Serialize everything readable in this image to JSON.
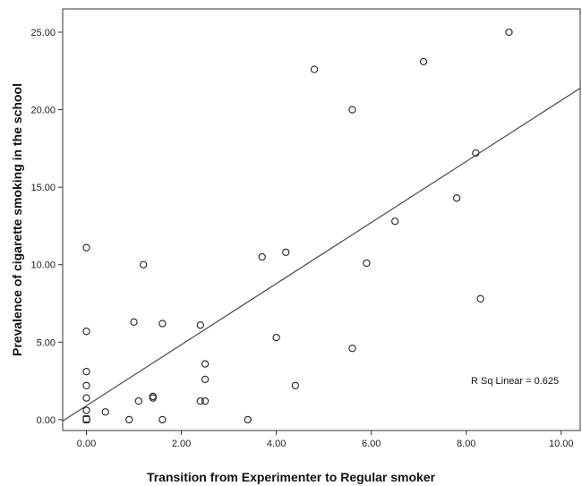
{
  "chart_data": {
    "type": "scatter",
    "title": "",
    "xlabel": "Transition from Experimenter to Regular smoker",
    "ylabel": "Prevalence of cigarette smoking in the school",
    "xlim": [
      -0.5,
      10.4
    ],
    "ylim": [
      -0.7,
      26.5
    ],
    "x_ticks": [
      0,
      2,
      4,
      6,
      8,
      10
    ],
    "x_tick_labels": [
      "0.00",
      "2.00",
      "4.00",
      "6.00",
      "8.00",
      "10.00"
    ],
    "y_ticks": [
      0,
      5,
      10,
      15,
      20,
      25
    ],
    "y_tick_labels": [
      "0.00",
      "5.00",
      "10.00",
      "15.00",
      "20.00",
      "25.00"
    ],
    "grid": false,
    "points": [
      {
        "x": 0.0,
        "y": 0.0
      },
      {
        "x": 0.0,
        "y": 0.05
      },
      {
        "x": 0.0,
        "y": 0.6
      },
      {
        "x": 0.0,
        "y": 1.4
      },
      {
        "x": 0.0,
        "y": 2.2
      },
      {
        "x": 0.0,
        "y": 3.1
      },
      {
        "x": 0.0,
        "y": 5.7
      },
      {
        "x": 0.0,
        "y": 11.1
      },
      {
        "x": 0.4,
        "y": 0.5
      },
      {
        "x": 0.9,
        "y": 0.0
      },
      {
        "x": 1.0,
        "y": 6.3
      },
      {
        "x": 1.1,
        "y": 1.2
      },
      {
        "x": 1.2,
        "y": 10.0
      },
      {
        "x": 1.4,
        "y": 1.4
      },
      {
        "x": 1.4,
        "y": 1.5
      },
      {
        "x": 1.6,
        "y": 0.0
      },
      {
        "x": 1.6,
        "y": 6.2
      },
      {
        "x": 2.4,
        "y": 1.2
      },
      {
        "x": 2.4,
        "y": 6.1
      },
      {
        "x": 2.5,
        "y": 1.2
      },
      {
        "x": 2.5,
        "y": 2.6
      },
      {
        "x": 2.5,
        "y": 3.6
      },
      {
        "x": 3.4,
        "y": 0.0
      },
      {
        "x": 3.7,
        "y": 10.5
      },
      {
        "x": 4.0,
        "y": 5.3
      },
      {
        "x": 4.2,
        "y": 10.8
      },
      {
        "x": 4.4,
        "y": 2.2
      },
      {
        "x": 4.8,
        "y": 22.6
      },
      {
        "x": 5.6,
        "y": 4.6
      },
      {
        "x": 5.6,
        "y": 20.0
      },
      {
        "x": 5.9,
        "y": 10.1
      },
      {
        "x": 6.5,
        "y": 12.8
      },
      {
        "x": 7.1,
        "y": 23.1
      },
      {
        "x": 7.8,
        "y": 14.3
      },
      {
        "x": 8.2,
        "y": 17.2
      },
      {
        "x": 8.3,
        "y": 7.8
      },
      {
        "x": 8.9,
        "y": 25.0
      }
    ],
    "fit_line": {
      "intercept": 0.9,
      "slope": 1.97
    },
    "annotation": "R Sq Linear = 0.625"
  }
}
